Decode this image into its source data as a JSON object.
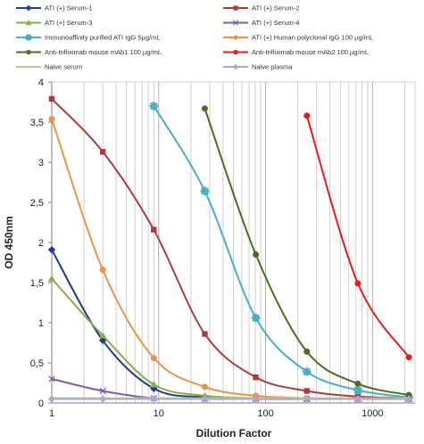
{
  "chart_data": {
    "type": "line",
    "xscale": "log",
    "xlabel": "Dilution Factor",
    "ylabel": "OD 450nm",
    "xlim": [
      1,
      2500
    ],
    "ylim": [
      0,
      4
    ],
    "xticks": [
      1,
      10,
      100,
      1000
    ],
    "xtick_labels": [
      "1",
      "10",
      "100",
      "1000"
    ],
    "yticks": [
      0,
      0.5,
      1,
      1.5,
      2,
      2.5,
      3,
      3.5,
      4
    ],
    "ytick_labels": [
      "0",
      "0,5",
      "1",
      "1,5",
      "2",
      "2,5",
      "3",
      "3,5",
      "4"
    ],
    "grid": "vertical",
    "legend_position": "top",
    "series": [
      {
        "name": "ATI (+) Serum-1",
        "color": "#1f3c88",
        "marker": "diamond",
        "x": [
          1,
          3,
          9,
          27,
          81,
          243,
          729,
          2187
        ],
        "y": [
          1.91,
          0.78,
          0.18,
          0.07,
          0.05,
          0.05,
          0.05,
          0.05
        ]
      },
      {
        "name": "ATI (+) Serum-2",
        "color": "#a83c3c",
        "marker": "square",
        "x": [
          1,
          3,
          9,
          27,
          81,
          243,
          729,
          2187
        ],
        "y": [
          3.79,
          3.13,
          2.16,
          0.86,
          0.32,
          0.15,
          0.08,
          0.06
        ]
      },
      {
        "name": "ATI (+) Serum-3",
        "color": "#8aaa4e",
        "marker": "triangle",
        "x": [
          1,
          3,
          9,
          27,
          81,
          243,
          729,
          2187
        ],
        "y": [
          1.55,
          0.84,
          0.23,
          0.09,
          0.06,
          0.05,
          0.05,
          0.05
        ]
      },
      {
        "name": "ATI (+) Serum-4",
        "color": "#7b5ca5",
        "marker": "x",
        "x": [
          1,
          3,
          9,
          27,
          81,
          243,
          729,
          2187
        ],
        "y": [
          0.3,
          0.15,
          0.06,
          0.05,
          0.05,
          0.05,
          0.05,
          0.05
        ]
      },
      {
        "name": "Immunoaffinity purified ATI IgG 5µg/mL",
        "color": "#4bacc6",
        "marker": "star",
        "x": [
          9,
          27,
          81,
          243,
          729,
          2187
        ],
        "y": [
          3.7,
          2.64,
          1.06,
          0.39,
          0.16,
          0.07
        ]
      },
      {
        "name": "ATI (+) Human polyclonal IgG 100 µg/mL",
        "color": "#e8944a",
        "marker": "circle",
        "x": [
          1,
          3,
          9,
          27,
          81,
          243,
          729,
          2187
        ],
        "y": [
          3.54,
          1.66,
          0.56,
          0.2,
          0.09,
          0.06,
          0.05,
          0.05
        ]
      },
      {
        "name": "Anti-Infliximab mouse mAb1 100 µg/mL",
        "color": "#4e6b24",
        "marker": "circle",
        "x": [
          27,
          81,
          243,
          729,
          2187
        ],
        "y": [
          3.67,
          1.85,
          0.64,
          0.24,
          0.1
        ]
      },
      {
        "name": "Anti-Infliximab mouse mAb2 100 µg/mL",
        "color": "#e81c1c",
        "marker": "circle",
        "x": [
          243,
          729,
          2187
        ],
        "y": [
          3.58,
          1.49,
          0.57
        ]
      },
      {
        "name": "Naive serum",
        "color": "#b5d28a",
        "marker": "none",
        "x": [
          1,
          3,
          9,
          27,
          81,
          243,
          729,
          2187
        ],
        "y": [
          0.06,
          0.06,
          0.06,
          0.06,
          0.06,
          0.06,
          0.06,
          0.06
        ]
      },
      {
        "name": "Naive plasma",
        "color": "#b5a3cf",
        "marker": "diamond",
        "x": [
          1,
          3,
          9,
          27,
          81,
          243,
          729,
          2187
        ],
        "y": [
          0.05,
          0.05,
          0.05,
          0.05,
          0.05,
          0.05,
          0.05,
          0.05
        ]
      }
    ]
  }
}
